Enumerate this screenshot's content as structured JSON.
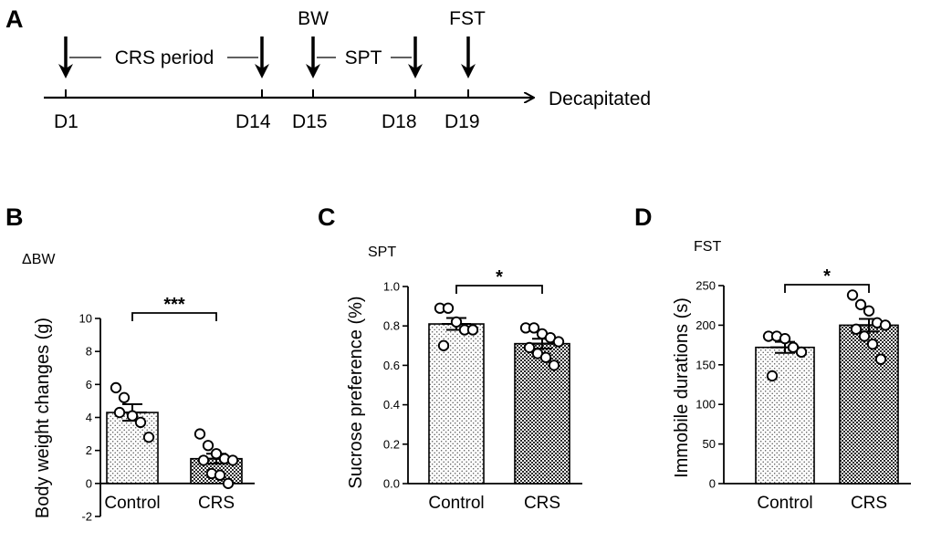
{
  "figure": {
    "panels": {
      "a": "A",
      "b": "B",
      "c": "C",
      "d": "D"
    }
  },
  "timeline": {
    "days": [
      "D1",
      "D14",
      "D15",
      "D18",
      "D19"
    ],
    "periods": [
      "CRS period",
      "SPT"
    ],
    "events": [
      "BW",
      "FST"
    ],
    "end_label": "Decapitated"
  },
  "chart_data": [
    {
      "type": "bar",
      "title": "ΔBW",
      "xlabel": "",
      "ylabel": "Body weight changes (g)",
      "ylim": [
        -2,
        10
      ],
      "yticks": [
        "-2",
        "0",
        "2",
        "4",
        "6",
        "8",
        "10"
      ],
      "categories": [
        "Control",
        "CRS"
      ],
      "values": [
        4.3,
        1.5
      ],
      "sem": [
        0.5,
        0.3
      ],
      "points": [
        [
          5.8,
          5.2,
          4.1,
          3.7,
          2.8,
          4.3
        ],
        [
          3.0,
          2.3,
          1.8,
          1.5,
          1.4,
          1.4,
          0.6,
          0.5,
          0.0
        ]
      ],
      "significance": "***",
      "fill": [
        "#f0f0f0",
        "#b7b7b7"
      ]
    },
    {
      "type": "bar",
      "title": "SPT",
      "xlabel": "",
      "ylabel": "Sucrose preference (%)",
      "ylim": [
        0,
        1.0
      ],
      "yticks": [
        "0.0",
        "0.2",
        "0.4",
        "0.6",
        "0.8",
        "1.0"
      ],
      "categories": [
        "Control",
        "CRS"
      ],
      "values": [
        0.81,
        0.71
      ],
      "sem": [
        0.03,
        0.025
      ],
      "points": [
        [
          0.89,
          0.89,
          0.82,
          0.78,
          0.78,
          0.7
        ],
        [
          0.79,
          0.79,
          0.76,
          0.74,
          0.72,
          0.69,
          0.66,
          0.64,
          0.6
        ]
      ],
      "significance": "*",
      "fill": [
        "#f0f0f0",
        "#b7b7b7"
      ]
    },
    {
      "type": "bar",
      "title": "FST",
      "xlabel": "",
      "ylabel": "Immobile durations (s)",
      "ylim": [
        0,
        250
      ],
      "yticks": [
        "0",
        "50",
        "100",
        "150",
        "200",
        "250"
      ],
      "categories": [
        "Control",
        "CRS"
      ],
      "values": [
        172,
        200
      ],
      "sem": [
        7,
        8
      ],
      "points": [
        [
          186,
          186,
          183,
          172,
          166,
          136
        ],
        [
          238,
          226,
          218,
          203,
          200,
          195,
          186,
          176,
          157
        ]
      ],
      "significance": "*",
      "fill": [
        "#f0f0f0",
        "#b7b7b7"
      ]
    }
  ]
}
